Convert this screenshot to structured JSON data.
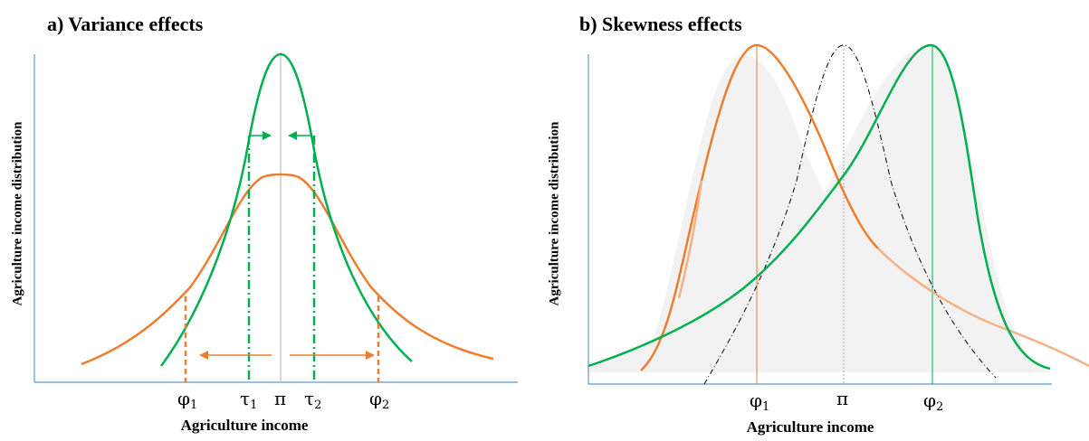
{
  "panels": [
    {
      "id": "a",
      "title": "a) Variance effects",
      "ylabel": "Agriculture income distribution",
      "xlabel": "Agriculture income",
      "ticks": [
        {
          "sym": "φ",
          "sub": "1"
        },
        {
          "sym": "τ",
          "sub": "1"
        },
        {
          "sym": "π",
          "sub": ""
        },
        {
          "sym": "τ",
          "sub": "2"
        },
        {
          "sym": "φ",
          "sub": "2"
        }
      ]
    },
    {
      "id": "b",
      "title": "b) Skewness effects",
      "ylabel": "Agriculture income distribution",
      "xlabel": "Agriculture income",
      "ticks": [
        {
          "sym": "φ",
          "sub": "1"
        },
        {
          "sym": "π",
          "sub": ""
        },
        {
          "sym": "φ",
          "sub": "2"
        }
      ]
    }
  ],
  "colors": {
    "orange": "#ED7D31",
    "light_orange": "#F4B183",
    "green": "#00B050",
    "axis": "#5B9BD5",
    "gray": "#A6A6A6",
    "shade": "#F2F2F2",
    "dashdot": "#000000"
  }
}
